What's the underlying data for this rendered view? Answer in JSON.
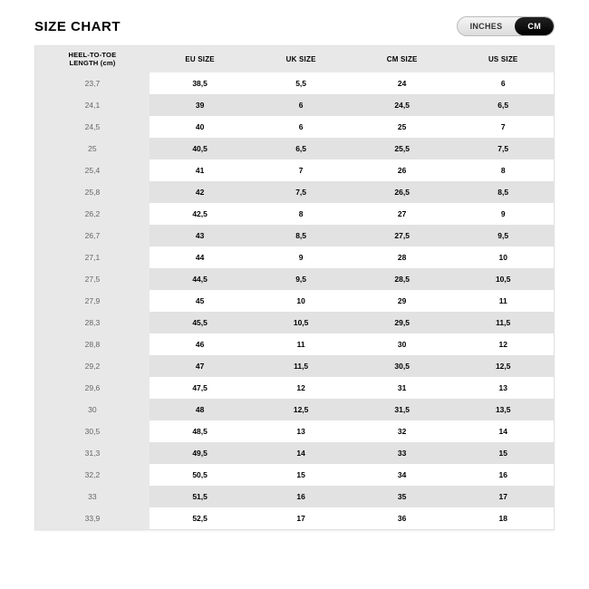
{
  "title": "SIZE CHART",
  "toggle": {
    "inches": "INCHES",
    "cm": "CM"
  },
  "table": {
    "type": "table",
    "columns": [
      "HEEL-TO-TOE LENGTH (cm)",
      "EU SIZE",
      "UK SIZE",
      "CM SIZE",
      "US SIZE"
    ],
    "column_widths": [
      "22%",
      "19.5%",
      "19.5%",
      "19.5%",
      "19.5%"
    ],
    "header_bg": "#e8e8e8",
    "row_alt_bg": "#e2e2e2",
    "row_bg": "#ffffff",
    "first_col_bg": "#e8e8e8",
    "font_color": "#000000",
    "rows": [
      [
        "23,7",
        "38,5",
        "5,5",
        "24",
        "6"
      ],
      [
        "24,1",
        "39",
        "6",
        "24,5",
        "6,5"
      ],
      [
        "24,5",
        "40",
        "6",
        "25",
        "7"
      ],
      [
        "25",
        "40,5",
        "6,5",
        "25,5",
        "7,5"
      ],
      [
        "25,4",
        "41",
        "7",
        "26",
        "8"
      ],
      [
        "25,8",
        "42",
        "7,5",
        "26,5",
        "8,5"
      ],
      [
        "26,2",
        "42,5",
        "8",
        "27",
        "9"
      ],
      [
        "26,7",
        "43",
        "8,5",
        "27,5",
        "9,5"
      ],
      [
        "27,1",
        "44",
        "9",
        "28",
        "10"
      ],
      [
        "27,5",
        "44,5",
        "9,5",
        "28,5",
        "10,5"
      ],
      [
        "27,9",
        "45",
        "10",
        "29",
        "11"
      ],
      [
        "28,3",
        "45,5",
        "10,5",
        "29,5",
        "11,5"
      ],
      [
        "28,8",
        "46",
        "11",
        "30",
        "12"
      ],
      [
        "29,2",
        "47",
        "11,5",
        "30,5",
        "12,5"
      ],
      [
        "29,6",
        "47,5",
        "12",
        "31",
        "13"
      ],
      [
        "30",
        "48",
        "12,5",
        "31,5",
        "13,5"
      ],
      [
        "30,5",
        "48,5",
        "13",
        "32",
        "14"
      ],
      [
        "31,3",
        "49,5",
        "14",
        "33",
        "15"
      ],
      [
        "32,2",
        "50,5",
        "15",
        "34",
        "16"
      ],
      [
        "33",
        "51,5",
        "16",
        "35",
        "17"
      ],
      [
        "33,9",
        "52,5",
        "17",
        "36",
        "18"
      ]
    ]
  }
}
